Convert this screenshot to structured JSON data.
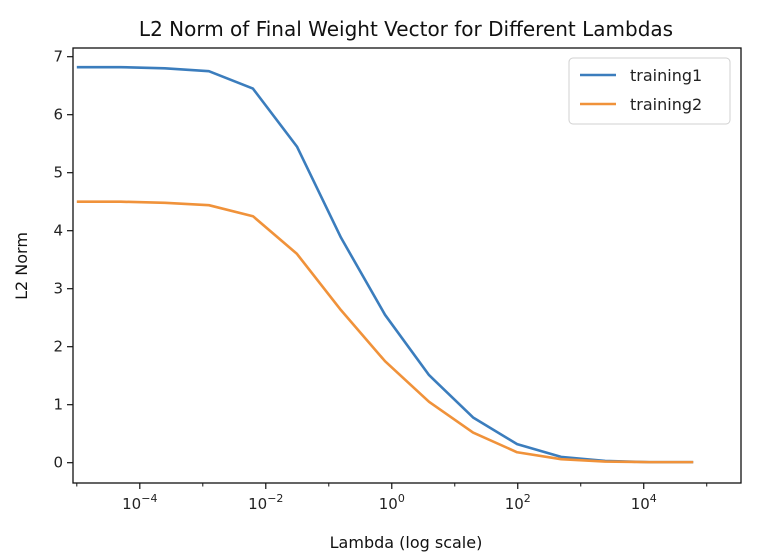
{
  "chart_data": {
    "type": "line",
    "title": "L2 Norm of Final Weight Vector for Different Lambdas",
    "xlabel": "Lambda (log scale)",
    "ylabel": "L2 Norm",
    "xscale": "log",
    "xlim": [
      8.7e-06,
      350000
    ],
    "ylim": [
      -0.35,
      7.15
    ],
    "xticks": [
      0.0001,
      0.01,
      1,
      100,
      10000
    ],
    "xtick_labels": [
      {
        "base": "10",
        "exp": "−4"
      },
      {
        "base": "10",
        "exp": "−2"
      },
      {
        "base": "10",
        "exp": "0"
      },
      {
        "base": "10",
        "exp": "2"
      },
      {
        "base": "10",
        "exp": "4"
      }
    ],
    "yticks": [
      0,
      1,
      2,
      3,
      4,
      5,
      6,
      7
    ],
    "grid": false,
    "legend": "top-right",
    "x": [
      1e-05,
      5e-05,
      0.00025,
      0.00125,
      0.00625,
      0.03125,
      0.15625,
      0.78125,
      3.90625,
      19.53125,
      97.65625,
      488.28125,
      2441.40625,
      12207.03125,
      61035.15625
    ],
    "series": [
      {
        "name": "training1",
        "color": "#3b7dbd",
        "values": [
          6.82,
          6.82,
          6.8,
          6.75,
          6.45,
          5.45,
          3.88,
          2.55,
          1.51,
          0.78,
          0.32,
          0.1,
          0.03,
          0.01,
          0.01
        ]
      },
      {
        "name": "training2",
        "color": "#f0923a",
        "values": [
          4.5,
          4.5,
          4.48,
          4.44,
          4.25,
          3.6,
          2.63,
          1.75,
          1.05,
          0.52,
          0.18,
          0.06,
          0.02,
          0.01,
          0.01
        ]
      }
    ]
  }
}
